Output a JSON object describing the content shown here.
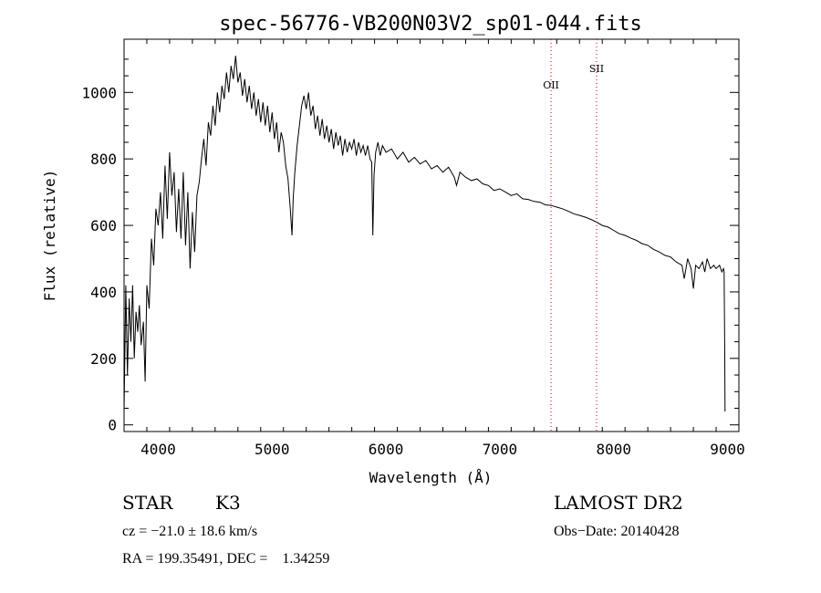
{
  "chart_data": {
    "type": "line",
    "title": "spec-56776-VB200N03V2_sp01-044.fits",
    "xlabel": "Wavelength (Å)",
    "ylabel": "Flux (relative)",
    "xlim": [
      3700,
      9100
    ],
    "ylim": [
      -20,
      1160
    ],
    "x_ticks": [
      4000,
      5000,
      6000,
      7000,
      8000,
      9000
    ],
    "y_ticks": [
      0,
      200,
      400,
      600,
      800,
      1000
    ],
    "grid": false,
    "series": [
      {
        "color": "#000000",
        "points": [
          [
            3700,
            40
          ],
          [
            3715,
            420
          ],
          [
            3730,
            150
          ],
          [
            3745,
            380
          ],
          [
            3760,
            250
          ],
          [
            3775,
            420
          ],
          [
            3790,
            200
          ],
          [
            3805,
            340
          ],
          [
            3820,
            280
          ],
          [
            3835,
            360
          ],
          [
            3850,
            240
          ],
          [
            3870,
            310
          ],
          [
            3885,
            130
          ],
          [
            3900,
            420
          ],
          [
            3920,
            350
          ],
          [
            3940,
            560
          ],
          [
            3960,
            480
          ],
          [
            3980,
            650
          ],
          [
            4000,
            600
          ],
          [
            4020,
            700
          ],
          [
            4040,
            560
          ],
          [
            4060,
            780
          ],
          [
            4080,
            620
          ],
          [
            4100,
            820
          ],
          [
            4120,
            690
          ],
          [
            4140,
            760
          ],
          [
            4160,
            580
          ],
          [
            4180,
            710
          ],
          [
            4200,
            560
          ],
          [
            4220,
            760
          ],
          [
            4240,
            540
          ],
          [
            4260,
            700
          ],
          [
            4280,
            470
          ],
          [
            4300,
            640
          ],
          [
            4320,
            520
          ],
          [
            4340,
            690
          ],
          [
            4360,
            730
          ],
          [
            4380,
            800
          ],
          [
            4400,
            860
          ],
          [
            4420,
            780
          ],
          [
            4440,
            910
          ],
          [
            4460,
            870
          ],
          [
            4480,
            960
          ],
          [
            4500,
            900
          ],
          [
            4520,
            1000
          ],
          [
            4540,
            940
          ],
          [
            4560,
            1020
          ],
          [
            4580,
            980
          ],
          [
            4600,
            1060
          ],
          [
            4620,
            1000
          ],
          [
            4640,
            1080
          ],
          [
            4660,
            1040
          ],
          [
            4680,
            1110
          ],
          [
            4700,
            1030
          ],
          [
            4720,
            1060
          ],
          [
            4740,
            990
          ],
          [
            4760,
            1040
          ],
          [
            4780,
            970
          ],
          [
            4800,
            1020
          ],
          [
            4820,
            950
          ],
          [
            4840,
            1000
          ],
          [
            4860,
            930
          ],
          [
            4880,
            980
          ],
          [
            4900,
            910
          ],
          [
            4920,
            970
          ],
          [
            4940,
            900
          ],
          [
            4960,
            960
          ],
          [
            4980,
            880
          ],
          [
            5000,
            940
          ],
          [
            5020,
            860
          ],
          [
            5040,
            910
          ],
          [
            5060,
            820
          ],
          [
            5080,
            880
          ],
          [
            5100,
            850
          ],
          [
            5120,
            780
          ],
          [
            5140,
            740
          ],
          [
            5160,
            650
          ],
          [
            5175,
            570
          ],
          [
            5185,
            680
          ],
          [
            5200,
            760
          ],
          [
            5220,
            840
          ],
          [
            5240,
            900
          ],
          [
            5260,
            960
          ],
          [
            5280,
            990
          ],
          [
            5300,
            950
          ],
          [
            5320,
            1000
          ],
          [
            5340,
            930
          ],
          [
            5360,
            960
          ],
          [
            5380,
            890
          ],
          [
            5400,
            930
          ],
          [
            5420,
            870
          ],
          [
            5440,
            920
          ],
          [
            5460,
            860
          ],
          [
            5480,
            900
          ],
          [
            5500,
            850
          ],
          [
            5520,
            890
          ],
          [
            5540,
            830
          ],
          [
            5560,
            880
          ],
          [
            5580,
            840
          ],
          [
            5600,
            870
          ],
          [
            5620,
            810
          ],
          [
            5640,
            860
          ],
          [
            5660,
            820
          ],
          [
            5680,
            850
          ],
          [
            5700,
            830
          ],
          [
            5720,
            860
          ],
          [
            5740,
            810
          ],
          [
            5760,
            850
          ],
          [
            5780,
            820
          ],
          [
            5800,
            840
          ],
          [
            5820,
            810
          ],
          [
            5840,
            840
          ],
          [
            5860,
            800
          ],
          [
            5875,
            790
          ],
          [
            5885,
            570
          ],
          [
            5895,
            750
          ],
          [
            5910,
            820
          ],
          [
            5930,
            850
          ],
          [
            5950,
            810
          ],
          [
            5970,
            840
          ],
          [
            6000,
            820
          ],
          [
            6050,
            830
          ],
          [
            6100,
            800
          ],
          [
            6150,
            820
          ],
          [
            6200,
            790
          ],
          [
            6250,
            805
          ],
          [
            6300,
            785
          ],
          [
            6350,
            795
          ],
          [
            6400,
            770
          ],
          [
            6450,
            780
          ],
          [
            6500,
            760
          ],
          [
            6550,
            775
          ],
          [
            6600,
            745
          ],
          [
            6620,
            720
          ],
          [
            6650,
            760
          ],
          [
            6700,
            745
          ],
          [
            6750,
            735
          ],
          [
            6800,
            740
          ],
          [
            6850,
            725
          ],
          [
            6900,
            720
          ],
          [
            6950,
            705
          ],
          [
            7000,
            710
          ],
          [
            7050,
            700
          ],
          [
            7100,
            690
          ],
          [
            7150,
            695
          ],
          [
            7200,
            680
          ],
          [
            7250,
            678
          ],
          [
            7300,
            672
          ],
          [
            7350,
            670
          ],
          [
            7400,
            662
          ],
          [
            7450,
            660
          ],
          [
            7500,
            655
          ],
          [
            7550,
            650
          ],
          [
            7600,
            643
          ],
          [
            7650,
            635
          ],
          [
            7700,
            630
          ],
          [
            7750,
            625
          ],
          [
            7800,
            618
          ],
          [
            7850,
            610
          ],
          [
            7900,
            600
          ],
          [
            7950,
            595
          ],
          [
            8000,
            585
          ],
          [
            8050,
            575
          ],
          [
            8100,
            570
          ],
          [
            8150,
            562
          ],
          [
            8200,
            555
          ],
          [
            8250,
            545
          ],
          [
            8300,
            540
          ],
          [
            8350,
            528
          ],
          [
            8400,
            520
          ],
          [
            8450,
            510
          ],
          [
            8500,
            505
          ],
          [
            8550,
            490
          ],
          [
            8600,
            480
          ],
          [
            8620,
            440
          ],
          [
            8650,
            500
          ],
          [
            8680,
            470
          ],
          [
            8700,
            410
          ],
          [
            8720,
            480
          ],
          [
            8750,
            470
          ],
          [
            8780,
            490
          ],
          [
            8800,
            460
          ],
          [
            8820,
            500
          ],
          [
            8850,
            470
          ],
          [
            8880,
            480
          ],
          [
            8900,
            470
          ],
          [
            8930,
            480
          ],
          [
            8950,
            460
          ],
          [
            8965,
            470
          ],
          [
            8970,
            460
          ],
          [
            8975,
            250
          ],
          [
            8978,
            40
          ]
        ]
      }
    ],
    "line_markers": [
      {
        "label": "OII",
        "x": 7450,
        "color": "#cc0000"
      },
      {
        "label": "SII",
        "x": 7850,
        "color": "#cc0000"
      }
    ]
  },
  "info": {
    "object_type": "STAR",
    "subclass": "K3",
    "survey": "LAMOST DR2",
    "cz_line": "cz = −21.0 ± 18.6 km/s",
    "obs_date_line": "Obs−Date: 20140428",
    "coords_line": "RA = 199.35491, DEC =    1.34259"
  }
}
